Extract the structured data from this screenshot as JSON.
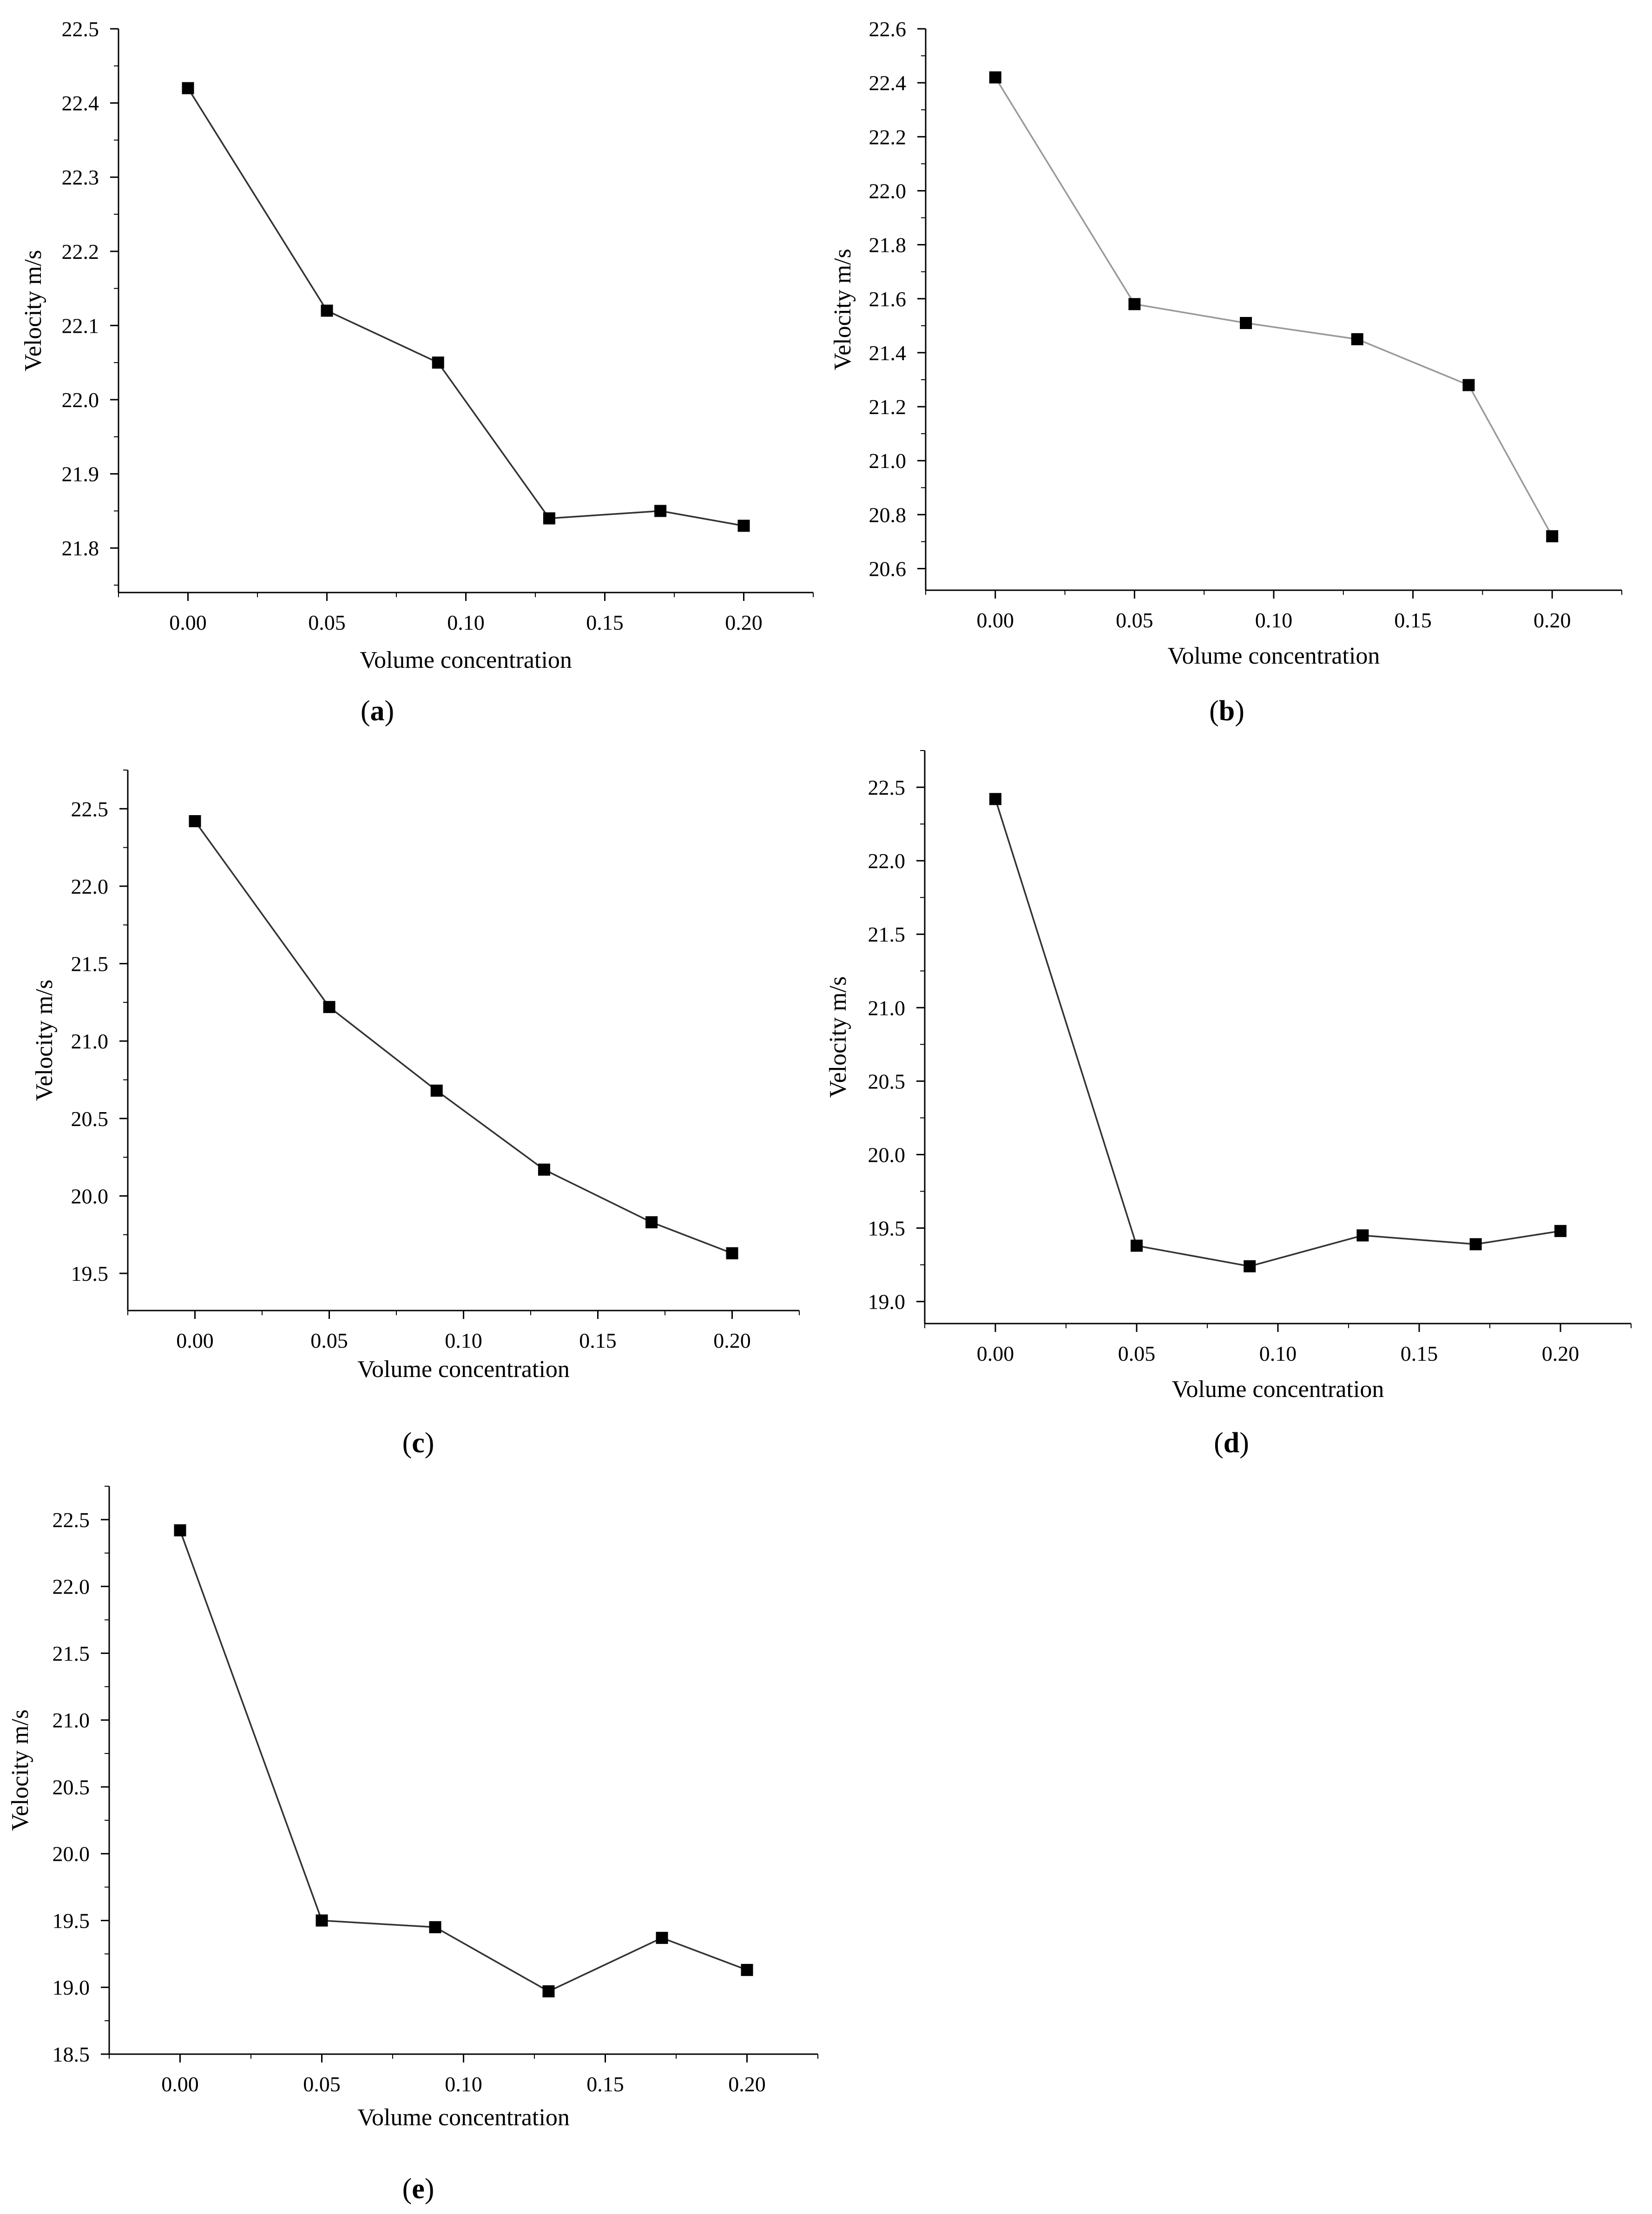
{
  "chart_data": [
    {
      "type": "line",
      "panel": "a",
      "caption": "a",
      "xlabel": "Volume concentration",
      "ylabel": "Velocity m/s",
      "x": [
        0.0,
        0.05,
        0.09,
        0.13,
        0.17,
        0.2
      ],
      "series": [
        {
          "name": "Velocity",
          "values": [
            22.42,
            22.12,
            22.05,
            21.84,
            21.85,
            21.83
          ]
        }
      ],
      "xlim": [
        -0.025,
        0.225
      ],
      "ylim": [
        21.74,
        22.5
      ],
      "xticks": [
        0.0,
        0.05,
        0.1,
        0.15,
        0.2
      ],
      "xtick_labels": [
        "0.00",
        "0.05",
        "0.10",
        "0.15",
        "0.20"
      ],
      "yticks": [
        21.8,
        21.9,
        22.0,
        22.1,
        22.2,
        22.3,
        22.4,
        22.5
      ],
      "ytick_labels": [
        "21.8",
        "21.9",
        "22.0",
        "22.1",
        "22.2",
        "22.3",
        "22.4",
        "22.5"
      ],
      "line_color": "#333333",
      "marker_color": "#000000"
    },
    {
      "type": "line",
      "panel": "b",
      "caption": "b",
      "xlabel": "Volume concentration",
      "ylabel": "Velocity m/s",
      "x": [
        0.0,
        0.05,
        0.09,
        0.13,
        0.17,
        0.2
      ],
      "series": [
        {
          "name": "Velocity",
          "values": [
            22.42,
            21.58,
            21.51,
            21.45,
            21.28,
            20.72
          ]
        }
      ],
      "xlim": [
        -0.025,
        0.225
      ],
      "ylim": [
        20.52,
        22.6
      ],
      "xticks": [
        0.0,
        0.05,
        0.1,
        0.15,
        0.2
      ],
      "xtick_labels": [
        "0.00",
        "0.05",
        "0.10",
        "0.15",
        "0.20"
      ],
      "yticks": [
        20.6,
        20.8,
        21.0,
        21.2,
        21.4,
        21.6,
        21.8,
        22.0,
        22.2,
        22.4,
        22.6
      ],
      "ytick_labels": [
        "20.6",
        "20.8",
        "21.0",
        "21.2",
        "21.4",
        "21.6",
        "21.8",
        "22.0",
        "22.2",
        "22.4",
        "22.6"
      ],
      "line_color": "#9a9a9a",
      "marker_color": "#000000"
    },
    {
      "type": "line",
      "panel": "c",
      "caption": "c",
      "xlabel": "Volume concentration",
      "ylabel": "Velocity m/s",
      "x": [
        0.0,
        0.05,
        0.09,
        0.13,
        0.17,
        0.2
      ],
      "series": [
        {
          "name": "Velocity",
          "values": [
            22.42,
            21.22,
            20.68,
            20.17,
            19.83,
            19.63
          ]
        }
      ],
      "xlim": [
        -0.025,
        0.225
      ],
      "ylim": [
        19.26,
        22.75
      ],
      "xticks": [
        0.0,
        0.05,
        0.1,
        0.15,
        0.2
      ],
      "xtick_labels": [
        "0.00",
        "0.05",
        "0.10",
        "0.15",
        "0.20"
      ],
      "yticks": [
        19.5,
        20.0,
        20.5,
        21.0,
        21.5,
        22.0,
        22.5
      ],
      "ytick_labels": [
        "19.5",
        "20.0",
        "20.5",
        "21.0",
        "21.5",
        "22.0",
        "22.5"
      ],
      "line_color": "#333333",
      "marker_color": "#000000"
    },
    {
      "type": "line",
      "panel": "d",
      "caption": "d",
      "xlabel": "Volume concentration",
      "ylabel": "Velocity m/s",
      "x": [
        0.0,
        0.05,
        0.09,
        0.13,
        0.17,
        0.2
      ],
      "series": [
        {
          "name": "Velocity",
          "values": [
            22.42,
            19.38,
            19.24,
            19.45,
            19.39,
            19.48
          ]
        }
      ],
      "xlim": [
        -0.025,
        0.225
      ],
      "ylim": [
        18.85,
        22.75
      ],
      "xticks": [
        0.0,
        0.05,
        0.1,
        0.15,
        0.2
      ],
      "xtick_labels": [
        "0.00",
        "0.05",
        "0.10",
        "0.15",
        "0.20"
      ],
      "yticks": [
        19.0,
        19.5,
        20.0,
        20.5,
        21.0,
        21.5,
        22.0,
        22.5
      ],
      "ytick_labels": [
        "19.0",
        "19.5",
        "20.0",
        "20.5",
        "21.0",
        "21.5",
        "22.0",
        "22.5"
      ],
      "line_color": "#333333",
      "marker_color": "#000000"
    },
    {
      "type": "line",
      "panel": "e",
      "caption": "e",
      "xlabel": "Volume concentration",
      "ylabel": "Velocity m/s",
      "x": [
        0.0,
        0.05,
        0.09,
        0.13,
        0.17,
        0.2
      ],
      "series": [
        {
          "name": "Velocity",
          "values": [
            22.42,
            19.5,
            19.45,
            18.97,
            19.37,
            19.13
          ]
        }
      ],
      "xlim": [
        -0.025,
        0.225
      ],
      "ylim": [
        18.5,
        22.75
      ],
      "xticks": [
        0.0,
        0.05,
        0.1,
        0.15,
        0.2
      ],
      "xtick_labels": [
        "0.00",
        "0.05",
        "0.10",
        "0.15",
        "0.20"
      ],
      "yticks": [
        18.5,
        19.0,
        19.5,
        20.0,
        20.5,
        21.0,
        21.5,
        22.0,
        22.5
      ],
      "ytick_labels": [
        "18.5",
        "19.0",
        "19.5",
        "20.0",
        "20.5",
        "21.0",
        "21.5",
        "22.0",
        "22.5"
      ],
      "line_color": "#333333",
      "marker_color": "#000000"
    }
  ]
}
